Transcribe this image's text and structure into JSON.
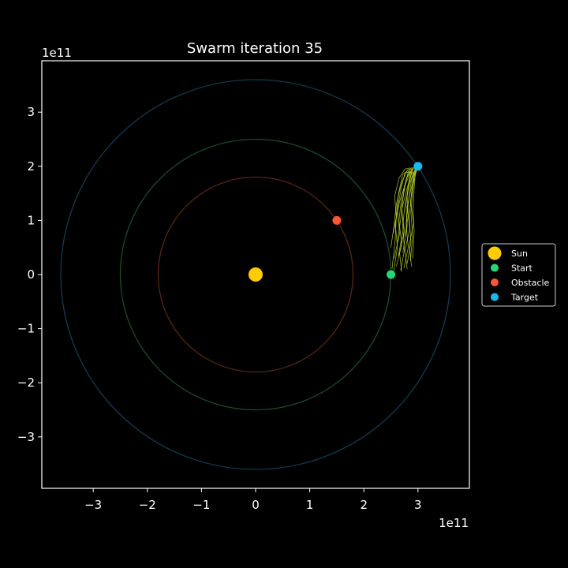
{
  "chart_data": {
    "type": "scatter",
    "title": "Swarm iteration 35",
    "xlabel": "",
    "ylabel": "",
    "x_exponent_label": "1e11",
    "y_exponent_label": "1e11",
    "xlim": [
      -3.95,
      3.95
    ],
    "ylim": [
      -3.95,
      3.95
    ],
    "x_ticks": [
      -3,
      -2,
      -1,
      0,
      1,
      2,
      3
    ],
    "y_ticks": [
      -3,
      -2,
      -1,
      0,
      1,
      2,
      3
    ],
    "x_tick_labels": [
      "−3",
      "−2",
      "−1",
      "0",
      "1",
      "2",
      "3"
    ],
    "y_tick_labels": [
      "−3",
      "−2",
      "−1",
      "0",
      "1",
      "2",
      "3"
    ],
    "grid": false,
    "legend_position": "center-right, outside plot",
    "orbits": [
      {
        "radius": 1.8,
        "color": "#5a2416"
      },
      {
        "radius": 2.5,
        "color": "#1b4a2c"
      },
      {
        "radius": 3.6,
        "color": "#123a50"
      }
    ],
    "bodies": [
      {
        "name": "Sun",
        "x": 0,
        "y": 0,
        "color": "#ffcc00",
        "size": "large"
      },
      {
        "name": "Start",
        "x": 2.5,
        "y": 0,
        "color": "#22d67a",
        "size": "small"
      },
      {
        "name": "Obstacle",
        "x": 1.5,
        "y": 1.0,
        "color": "#ff5533",
        "size": "small"
      },
      {
        "name": "Target",
        "x": 3.0,
        "y": 2.0,
        "color": "#1ab8f0",
        "size": "small"
      }
    ],
    "swarm": {
      "color": "#c8e632",
      "trajectories": [
        [
          [
            2.52,
            0.1
          ],
          [
            2.58,
            0.65
          ],
          [
            2.6,
            1.1
          ],
          [
            2.64,
            1.5
          ],
          [
            2.72,
            1.85
          ],
          [
            2.85,
            1.95
          ]
        ],
        [
          [
            2.55,
            0.05
          ],
          [
            2.62,
            0.5
          ],
          [
            2.58,
            0.95
          ],
          [
            2.66,
            1.35
          ],
          [
            2.78,
            1.7
          ],
          [
            2.88,
            1.93
          ]
        ],
        [
          [
            2.6,
            0.15
          ],
          [
            2.7,
            0.55
          ],
          [
            2.65,
            1.0
          ],
          [
            2.7,
            1.45
          ],
          [
            2.8,
            1.8
          ],
          [
            2.9,
            1.96
          ]
        ],
        [
          [
            2.68,
            0.08
          ],
          [
            2.75,
            0.45
          ],
          [
            2.72,
            0.9
          ],
          [
            2.76,
            1.3
          ],
          [
            2.84,
            1.65
          ],
          [
            2.92,
            1.9
          ]
        ],
        [
          [
            2.74,
            0.12
          ],
          [
            2.82,
            0.5
          ],
          [
            2.78,
            0.95
          ],
          [
            2.83,
            1.4
          ],
          [
            2.88,
            1.75
          ],
          [
            2.94,
            1.94
          ]
        ],
        [
          [
            2.8,
            0.2
          ],
          [
            2.87,
            0.6
          ],
          [
            2.84,
            1.05
          ],
          [
            2.88,
            1.5
          ],
          [
            2.91,
            1.8
          ],
          [
            2.96,
            1.97
          ]
        ],
        [
          [
            2.86,
            0.25
          ],
          [
            2.9,
            0.7
          ],
          [
            2.87,
            1.15
          ],
          [
            2.9,
            1.55
          ],
          [
            2.93,
            1.85
          ],
          [
            2.97,
            1.95
          ]
        ],
        [
          [
            2.9,
            0.3
          ],
          [
            2.93,
            0.8
          ],
          [
            2.91,
            1.2
          ],
          [
            2.93,
            1.6
          ],
          [
            2.95,
            1.87
          ],
          [
            2.98,
            1.92
          ]
        ],
        [
          [
            2.56,
            0.3
          ],
          [
            2.66,
            0.75
          ],
          [
            2.62,
            1.2
          ],
          [
            2.69,
            1.6
          ],
          [
            2.76,
            1.88
          ],
          [
            2.86,
            1.9
          ]
        ],
        [
          [
            2.64,
            0.35
          ],
          [
            2.73,
            0.85
          ],
          [
            2.7,
            1.25
          ],
          [
            2.75,
            1.62
          ],
          [
            2.82,
            1.9
          ],
          [
            2.9,
            1.88
          ]
        ],
        [
          [
            2.72,
            0.4
          ],
          [
            2.8,
            0.9
          ],
          [
            2.78,
            1.3
          ],
          [
            2.82,
            1.66
          ],
          [
            2.87,
            1.9
          ],
          [
            2.93,
            1.86
          ]
        ],
        [
          [
            2.5,
            0.5
          ],
          [
            2.56,
            0.92
          ],
          [
            2.6,
            1.3
          ],
          [
            2.7,
            1.7
          ],
          [
            2.8,
            1.92
          ],
          [
            2.9,
            1.98
          ]
        ],
        [
          [
            2.62,
            0.6
          ],
          [
            2.68,
            1.02
          ],
          [
            2.72,
            1.4
          ],
          [
            2.78,
            1.75
          ],
          [
            2.85,
            1.93
          ],
          [
            2.95,
            1.99
          ]
        ],
        [
          [
            2.7,
            0.05
          ],
          [
            2.66,
            0.4
          ],
          [
            2.75,
            0.8
          ],
          [
            2.7,
            1.2
          ],
          [
            2.8,
            1.6
          ],
          [
            2.9,
            1.95
          ]
        ],
        [
          [
            2.8,
            0.1
          ],
          [
            2.76,
            0.45
          ],
          [
            2.85,
            0.85
          ],
          [
            2.8,
            1.25
          ],
          [
            2.88,
            1.62
          ],
          [
            2.96,
            1.93
          ]
        ],
        [
          [
            2.88,
            0.15
          ],
          [
            2.84,
            0.55
          ],
          [
            2.92,
            0.95
          ],
          [
            2.86,
            1.35
          ],
          [
            2.92,
            1.7
          ],
          [
            2.98,
            1.96
          ]
        ],
        [
          [
            2.54,
            0.75
          ],
          [
            2.6,
            1.05
          ],
          [
            2.57,
            1.45
          ],
          [
            2.65,
            1.78
          ],
          [
            2.76,
            1.95
          ],
          [
            2.86,
            1.97
          ]
        ],
        [
          [
            2.76,
            0.7
          ],
          [
            2.82,
            1.1
          ],
          [
            2.8,
            1.45
          ],
          [
            2.86,
            1.78
          ],
          [
            2.9,
            1.94
          ],
          [
            2.97,
            1.98
          ]
        ]
      ]
    }
  }
}
